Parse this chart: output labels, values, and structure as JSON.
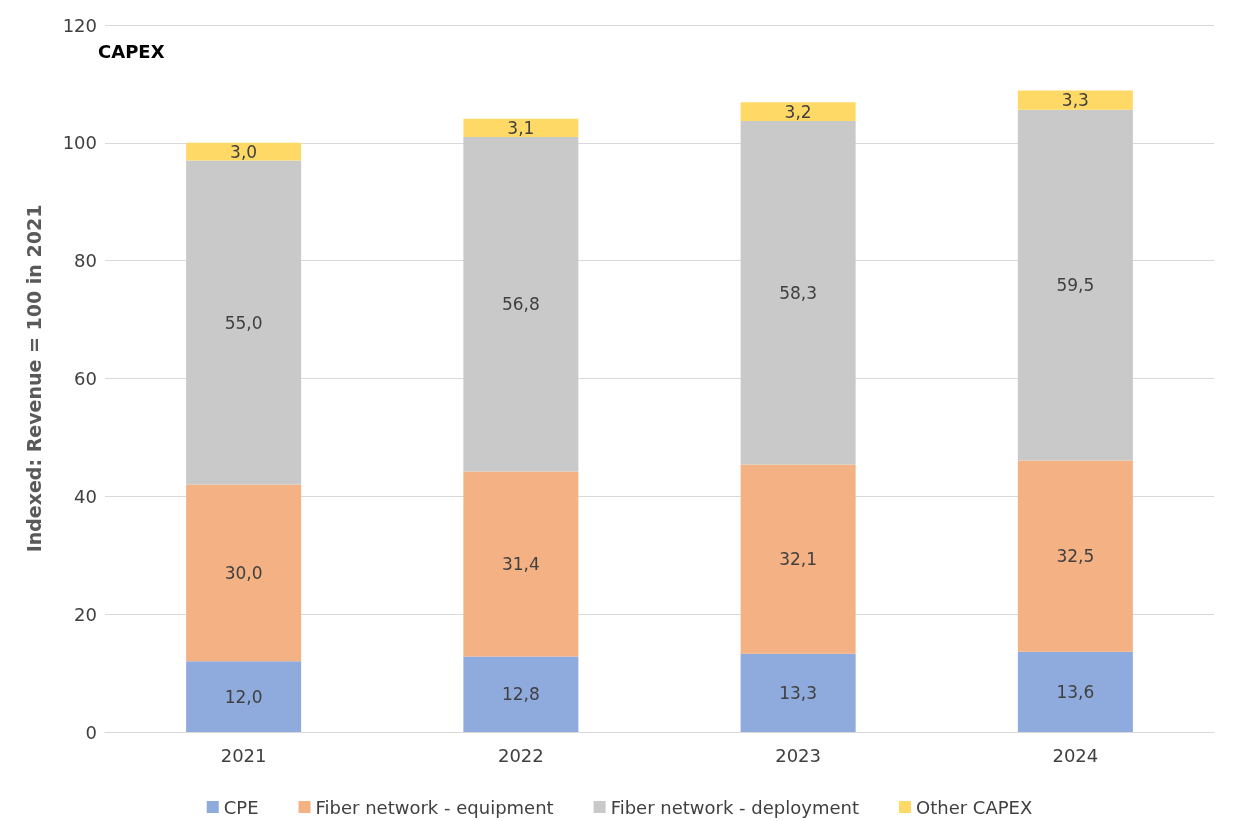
{
  "chart_data": {
    "type": "bar",
    "title": "CAPEX",
    "ylabel": "Indexed: Revenue = 100 in 2021",
    "categories": [
      "2021",
      "2022",
      "2023",
      "2024"
    ],
    "stacked": true,
    "ylim": [
      0,
      120
    ],
    "yticks": [
      0,
      20,
      40,
      60,
      80,
      100,
      120
    ],
    "grid": "y",
    "legend": "bottom",
    "series": [
      {
        "name": "CPE",
        "color": "#8faadc",
        "values": [
          12.0,
          12.8,
          13.3,
          13.6
        ],
        "value_labels": [
          "12,0",
          "12,8",
          "13,3",
          "13,6"
        ]
      },
      {
        "name": "Fiber network - equipment",
        "color": "#f4b183",
        "values": [
          30.0,
          31.4,
          32.1,
          32.5
        ],
        "value_labels": [
          "30,0",
          "31,4",
          "32,1",
          "32,5"
        ]
      },
      {
        "name": "Fiber network - deployment",
        "color": "#c9c9c9",
        "values": [
          55.0,
          56.8,
          58.3,
          59.5
        ],
        "value_labels": [
          "55,0",
          "56,8",
          "58,3",
          "59,5"
        ]
      },
      {
        "name": "Other CAPEX",
        "color": "#ffd966",
        "values": [
          3.0,
          3.1,
          3.2,
          3.3
        ],
        "value_labels": [
          "3,0",
          "3,1",
          "3,2",
          "3,3"
        ]
      }
    ]
  }
}
